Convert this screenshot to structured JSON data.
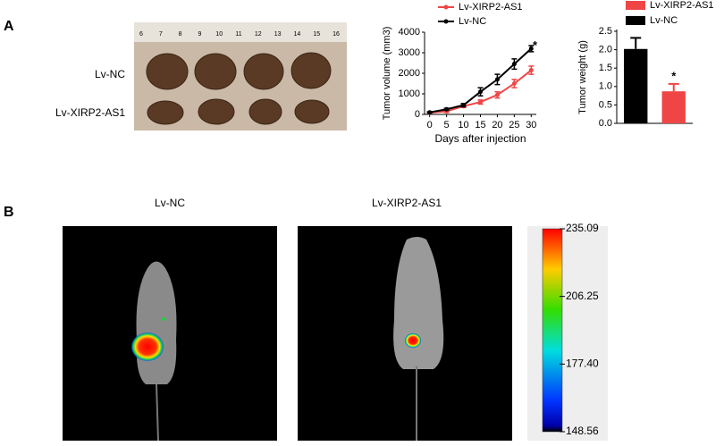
{
  "panels": {
    "a": "A",
    "b": "B"
  },
  "photo_labels": [
    "Lv-NC",
    "Lv-XIRP2-AS1"
  ],
  "ruler_labels": [
    "6",
    "7",
    "8",
    "9",
    "10",
    "11",
    "12",
    "13",
    "14",
    "15",
    "16"
  ],
  "imaging_labels": [
    "Lv-NC",
    "Lv-XIRP2-AS1"
  ],
  "chart_data": [
    {
      "type": "line",
      "xlabel": "Days after injection",
      "ylabel": "Tumor volume (mm3)",
      "x": [
        0,
        5,
        10,
        15,
        20,
        25,
        30
      ],
      "xlim": [
        -1.5,
        31.5
      ],
      "xticks": [
        0,
        5,
        10,
        15,
        20,
        25,
        30
      ],
      "ylim": [
        0,
        4000
      ],
      "yticks": [
        0,
        1000,
        2000,
        3000,
        4000
      ],
      "series": [
        {
          "name": "Lv-XIRP2-AS1",
          "color": "#f04545",
          "values": [
            80,
            150,
            400,
            600,
            950,
            1500,
            2150
          ],
          "errors": [
            30,
            50,
            60,
            100,
            150,
            200,
            200
          ]
        },
        {
          "name": "Lv-NC",
          "color": "#000000",
          "values": [
            100,
            250,
            450,
            1100,
            1700,
            2450,
            3200
          ],
          "errors": [
            30,
            50,
            80,
            200,
            250,
            250,
            150
          ]
        }
      ],
      "annotation": "*"
    },
    {
      "type": "bar",
      "ylabel": "Tumor weight (g)",
      "categories": [
        null,
        null
      ],
      "ylim": [
        0,
        2.5
      ],
      "yticks": [
        {
          "value": 0,
          "label": "0.0"
        },
        0.5,
        {
          "value": 1,
          "label": "1.0"
        },
        1.5,
        {
          "value": 2,
          "label": "2.0"
        },
        2.5
      ],
      "series": [
        {
          "name": "Lv-XIRP2-AS1",
          "color": "#f04545",
          "values": [
            null,
            0.87
          ],
          "errors": [
            null,
            0.2
          ]
        },
        {
          "name": "Lv-NC",
          "color": "#000000",
          "values": [
            2.02,
            null
          ],
          "errors": [
            0.3,
            null
          ]
        }
      ],
      "annotation": "*"
    },
    {
      "type": "colorbar",
      "ylim": [
        148.56,
        235.09
      ],
      "yticks": [
        148.56,
        {
          "value": 177.4,
          "label": "177.40"
        },
        206.25,
        235.09
      ]
    }
  ]
}
